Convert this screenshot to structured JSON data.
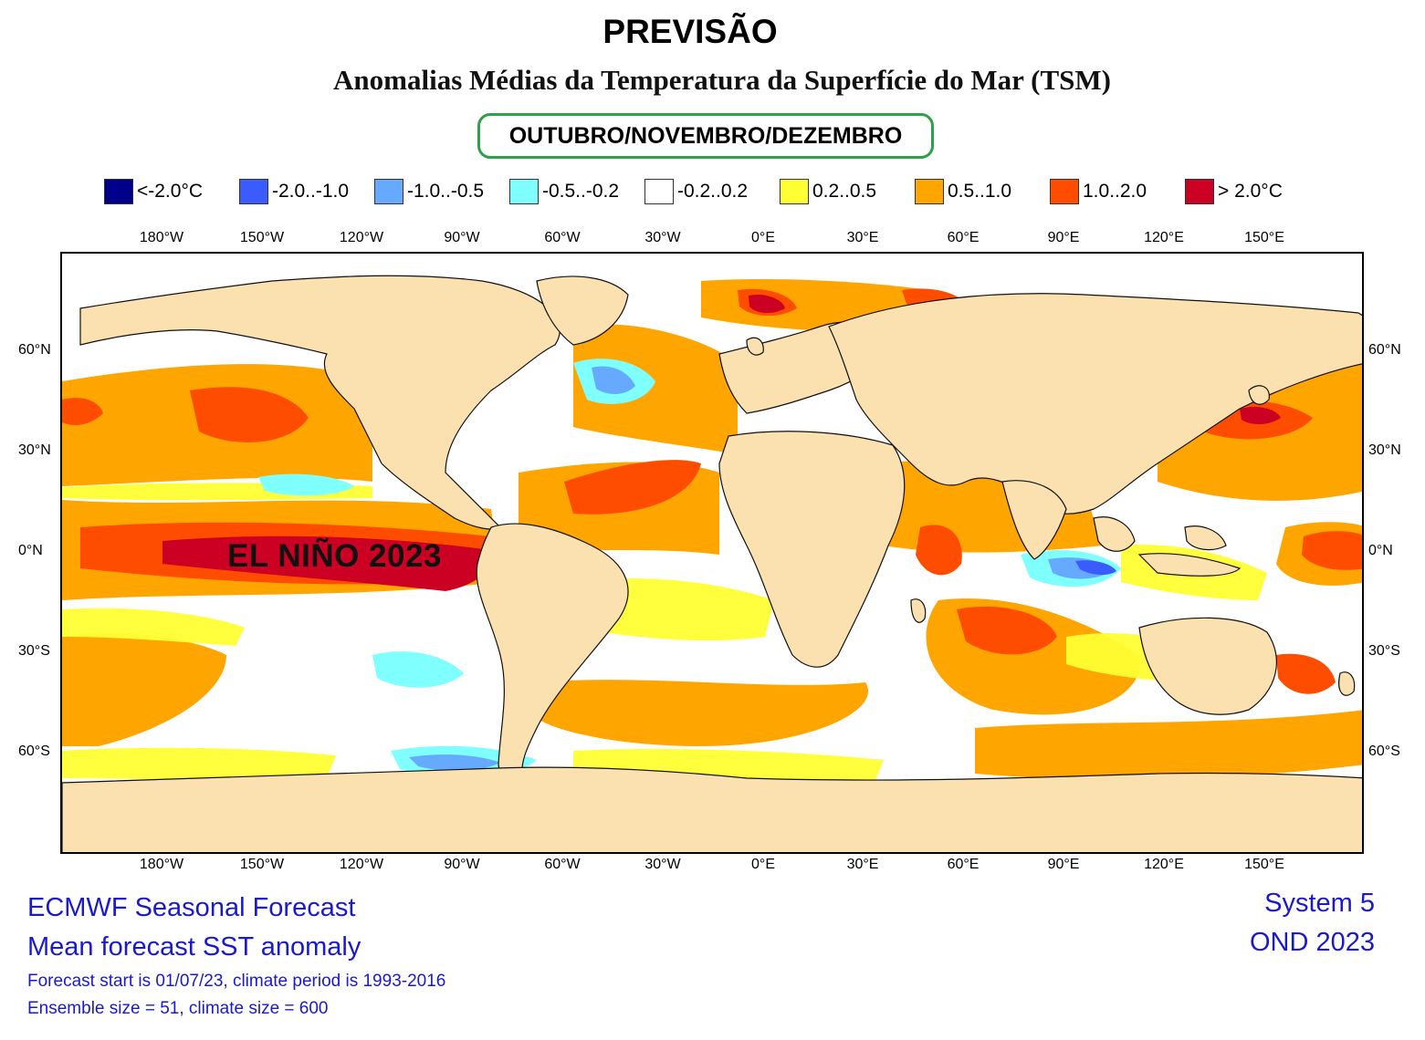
{
  "header": {
    "title": "PREVISÃO",
    "subtitle": "Anomalias Médias da Temperatura da Superfície do Mar (TSM)",
    "period": "OUTUBRO/NOVEMBRO/DEZEMBRO"
  },
  "legend": [
    {
      "label": "<-2.0°C",
      "color": "#00008b"
    },
    {
      "label": "-2.0..-1.0",
      "color": "#3a5cff"
    },
    {
      "label": "-1.0..-0.5",
      "color": "#66aaff"
    },
    {
      "label": "-0.5..-0.2",
      "color": "#80ffff"
    },
    {
      "label": "-0.2..0.2",
      "color": "#ffffff"
    },
    {
      "label": "0.2..0.5",
      "color": "#ffff33"
    },
    {
      "label": "0.5..1.0",
      "color": "#ffa500"
    },
    {
      "label": "1.0..2.0",
      "color": "#ff4d00"
    },
    {
      "label": "> 2.0°C",
      "color": "#cc0022"
    }
  ],
  "map": {
    "longitude_labels": [
      "180°W",
      "150°W",
      "120°W",
      "90°W",
      "60°W",
      "30°W",
      "0°E",
      "30°E",
      "60°E",
      "90°E",
      "120°E",
      "150°E"
    ],
    "latitude_labels": [
      "60°N",
      "30°N",
      "0°N",
      "30°S",
      "60°S"
    ],
    "annotation": "EL NIÑO 2023",
    "land_color": "#fbe0b0"
  },
  "footer": {
    "left_line1": "ECMWF Seasonal Forecast",
    "left_line2": "Mean forecast SST anomaly",
    "left_line3": "Forecast start is 01/07/23, climate period is 1993-2016",
    "left_line4": "Ensemble size = 51, climate size = 600",
    "right_line1": "System 5",
    "right_line2": "OND 2023"
  }
}
